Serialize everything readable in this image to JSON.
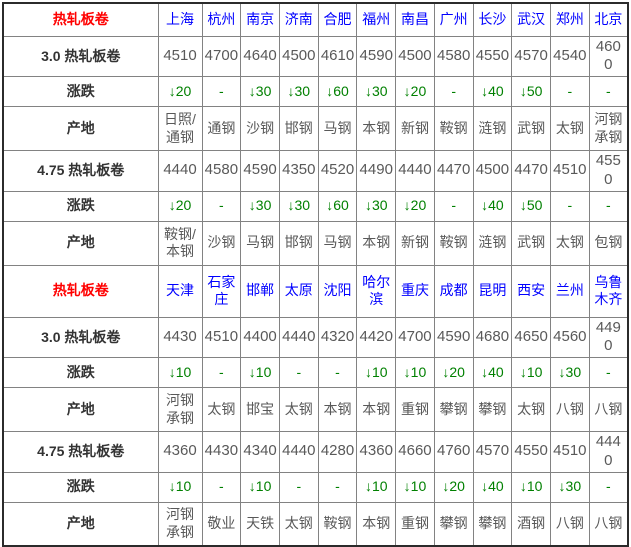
{
  "colors": {
    "header_red": "#ff0000",
    "city_blue": "#0000ff",
    "change_green": "#008000",
    "value_gray": "#595959",
    "label_dark": "#333333",
    "grid_border": "#828282",
    "outer_border": "#2b2b2b",
    "background": "#ffffff"
  },
  "chart_data": [
    {
      "type": "table",
      "header_label": "热轧板卷",
      "cities": [
        "上海",
        "杭州",
        "南京",
        "济南",
        "合肥",
        "福州",
        "南昌",
        "广州",
        "长沙",
        "武汉",
        "郑州",
        "北京"
      ],
      "rows": [
        {
          "label": "3.0 热轧板卷",
          "type": "price",
          "values": [
            "4510",
            "4700",
            "4640",
            "4500",
            "4610",
            "4590",
            "4500",
            "4580",
            "4550",
            "4570",
            "4540",
            "4600"
          ]
        },
        {
          "label": "涨跌",
          "type": "change",
          "values": [
            "↓20",
            "-",
            "↓30",
            "↓30",
            "↓60",
            "↓30",
            "↓20",
            "-",
            "↓40",
            "↓50",
            "-",
            "-"
          ]
        },
        {
          "label": "产地",
          "type": "origin",
          "values": [
            "日照/通钢",
            "通钢",
            "沙钢",
            "邯钢",
            "马钢",
            "本钢",
            "新钢",
            "鞍钢",
            "涟钢",
            "武钢",
            "太钢",
            "河钢承钢"
          ]
        },
        {
          "label": "4.75 热轧板卷",
          "type": "price",
          "values": [
            "4440",
            "4580",
            "4590",
            "4350",
            "4520",
            "4490",
            "4440",
            "4470",
            "4500",
            "4470",
            "4510",
            "4550"
          ]
        },
        {
          "label": "涨跌",
          "type": "change",
          "values": [
            "↓20",
            "-",
            "↓30",
            "↓30",
            "↓60",
            "↓30",
            "↓20",
            "-",
            "↓40",
            "↓50",
            "-",
            "-"
          ]
        },
        {
          "label": "产地",
          "type": "origin",
          "values": [
            "鞍钢/本钢",
            "沙钢",
            "马钢",
            "邯钢",
            "马钢",
            "本钢",
            "新钢",
            "鞍钢",
            "涟钢",
            "武钢",
            "太钢",
            "包钢"
          ]
        }
      ]
    },
    {
      "type": "table",
      "header_label": "热轧板卷",
      "cities": [
        "天津",
        "石家庄",
        "邯郸",
        "太原",
        "沈阳",
        "哈尔滨",
        "重庆",
        "成都",
        "昆明",
        "西安",
        "兰州",
        "乌鲁木齐"
      ],
      "rows": [
        {
          "label": "3.0 热轧板卷",
          "type": "price",
          "values": [
            "4430",
            "4510",
            "4400",
            "4440",
            "4320",
            "4420",
            "4700",
            "4590",
            "4680",
            "4650",
            "4560",
            "4490"
          ]
        },
        {
          "label": "涨跌",
          "type": "change",
          "values": [
            "↓10",
            "-",
            "↓10",
            "-",
            "-",
            "↓10",
            "↓10",
            "↓20",
            "↓40",
            "↓10",
            "↓30",
            "-"
          ]
        },
        {
          "label": "产地",
          "type": "origin",
          "values": [
            "河钢承钢",
            "太钢",
            "邯宝",
            "太钢",
            "本钢",
            "本钢",
            "重钢",
            "攀钢",
            "攀钢",
            "太钢",
            "八钢",
            "八钢"
          ]
        },
        {
          "label": "4.75 热轧板卷",
          "type": "price",
          "values": [
            "4360",
            "4430",
            "4340",
            "4440",
            "4280",
            "4360",
            "4660",
            "4760",
            "4570",
            "4550",
            "4510",
            "4440"
          ]
        },
        {
          "label": "涨跌",
          "type": "change",
          "values": [
            "↓10",
            "-",
            "↓10",
            "-",
            "-",
            "↓10",
            "↓10",
            "↓20",
            "↓40",
            "↓10",
            "↓30",
            "-"
          ]
        },
        {
          "label": "产地",
          "type": "origin",
          "values": [
            "河钢承钢",
            "敬业",
            "天铁",
            "太钢",
            "鞍钢",
            "本钢",
            "重钢",
            "攀钢",
            "攀钢",
            "酒钢",
            "八钢",
            "八钢"
          ]
        }
      ]
    }
  ]
}
